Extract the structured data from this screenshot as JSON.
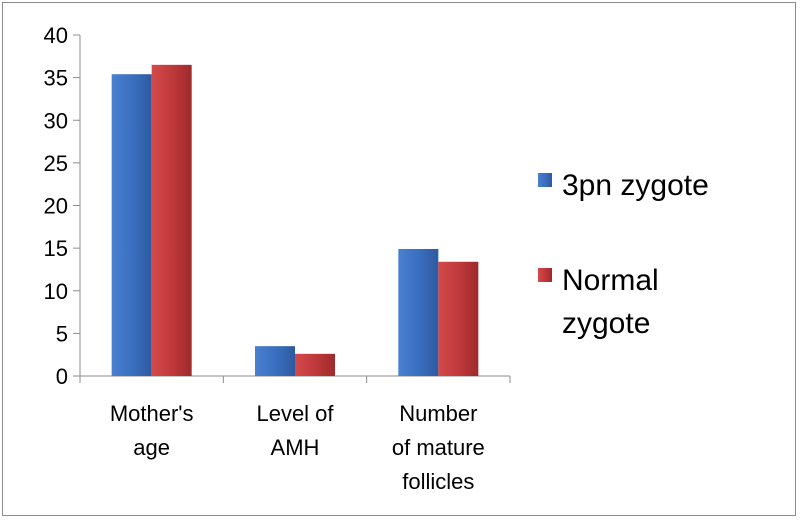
{
  "chart_data": {
    "type": "bar",
    "categories": [
      [
        "Mother's",
        "age"
      ],
      [
        "Level of",
        "AMH"
      ],
      [
        "Number",
        "of mature",
        "follicles"
      ]
    ],
    "series": [
      {
        "name": "3pn zygote",
        "values": [
          35.4,
          3.5,
          14.9
        ],
        "color": "#3b6fbf"
      },
      {
        "name": "Normal zygote",
        "values": [
          36.5,
          2.6,
          13.4
        ],
        "color": "#c0393b"
      }
    ],
    "legend_lines": [
      [
        "3pn zygote"
      ],
      [
        "Normal",
        "zygote"
      ]
    ],
    "ylim": [
      0,
      40
    ],
    "yticks": [
      0,
      5,
      10,
      15,
      20,
      25,
      30,
      35,
      40
    ],
    "grid": false,
    "legend_position": "right",
    "title": "",
    "xlabel": "",
    "ylabel": ""
  }
}
